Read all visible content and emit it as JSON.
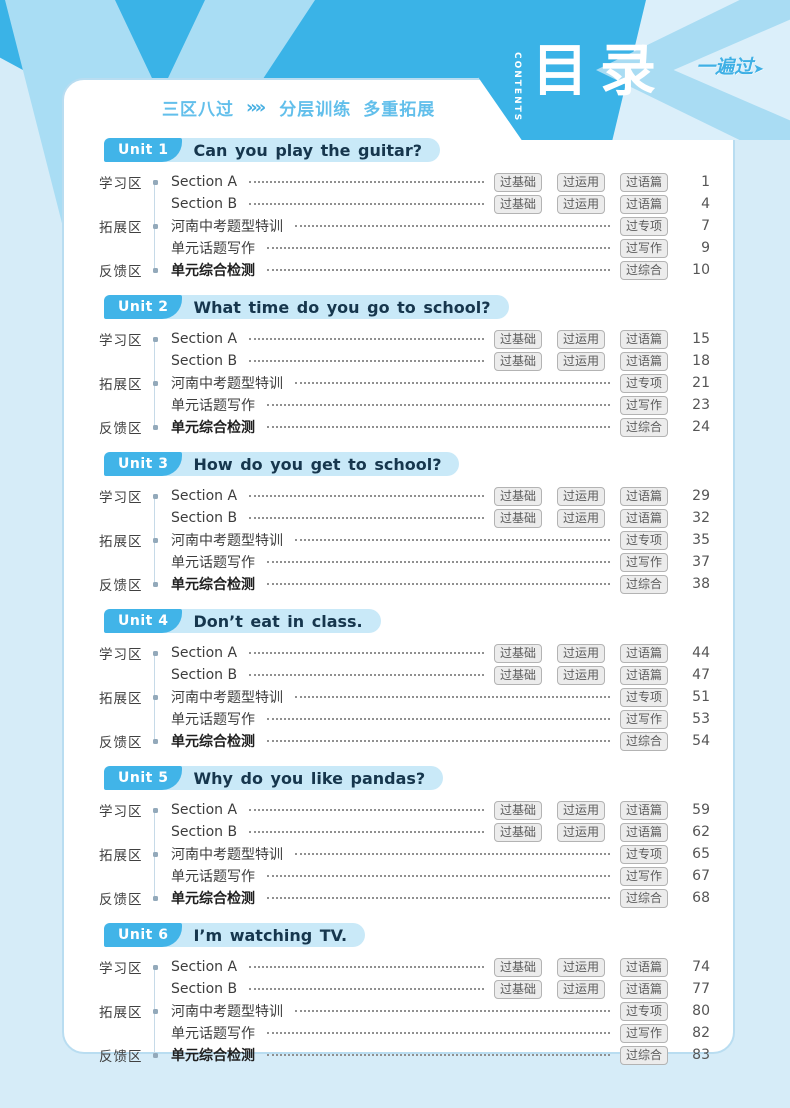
{
  "header": {
    "contents_label": "CONTENTS",
    "title": "目录",
    "brand": "一遍过",
    "tagline": {
      "lead": "三区八过",
      "mid": "分层训练",
      "tail": "多重拓展"
    }
  },
  "icons": {
    "double_chevron": "»»",
    "logo_arrow": "➤"
  },
  "colors": {
    "band_blue": "#3ab3e7",
    "badge_blue": "#41b4e8",
    "bubble_light_blue": "#c9e9f8",
    "page_background": "#d6ecf8",
    "tag_background": "#ececec",
    "title_navy": "#16364d",
    "tagline_blue": "#62bfeb"
  },
  "units": [
    {
      "badge": "Unit 1",
      "title": "Can you play the guitar?",
      "rows": [
        {
          "zone": "学习区",
          "item": "Section A",
          "bold": false,
          "tags": [
            "过基础",
            "过运用",
            "过语篇"
          ],
          "page": "1"
        },
        {
          "zone": "",
          "item": "Section B",
          "bold": false,
          "tags": [
            "过基础",
            "过运用",
            "过语篇"
          ],
          "page": "4"
        },
        {
          "zone": "拓展区",
          "item": "河南中考题型特训",
          "bold": false,
          "tags": [
            "过专项"
          ],
          "page": "7"
        },
        {
          "zone": "",
          "item": "单元话题写作",
          "bold": false,
          "tags": [
            "过写作"
          ],
          "page": "9"
        },
        {
          "zone": "反馈区",
          "item": "单元综合检测",
          "bold": true,
          "tags": [
            "过综合"
          ],
          "page": "10"
        }
      ]
    },
    {
      "badge": "Unit 2",
      "title": "What time do you go to school?",
      "rows": [
        {
          "zone": "学习区",
          "item": "Section A",
          "bold": false,
          "tags": [
            "过基础",
            "过运用",
            "过语篇"
          ],
          "page": "15"
        },
        {
          "zone": "",
          "item": "Section B",
          "bold": false,
          "tags": [
            "过基础",
            "过运用",
            "过语篇"
          ],
          "page": "18"
        },
        {
          "zone": "拓展区",
          "item": "河南中考题型特训",
          "bold": false,
          "tags": [
            "过专项"
          ],
          "page": "21"
        },
        {
          "zone": "",
          "item": "单元话题写作",
          "bold": false,
          "tags": [
            "过写作"
          ],
          "page": "23"
        },
        {
          "zone": "反馈区",
          "item": "单元综合检测",
          "bold": true,
          "tags": [
            "过综合"
          ],
          "page": "24"
        }
      ]
    },
    {
      "badge": "Unit 3",
      "title": "How do you get to school?",
      "rows": [
        {
          "zone": "学习区",
          "item": "Section A",
          "bold": false,
          "tags": [
            "过基础",
            "过运用",
            "过语篇"
          ],
          "page": "29"
        },
        {
          "zone": "",
          "item": "Section B",
          "bold": false,
          "tags": [
            "过基础",
            "过运用",
            "过语篇"
          ],
          "page": "32"
        },
        {
          "zone": "拓展区",
          "item": "河南中考题型特训",
          "bold": false,
          "tags": [
            "过专项"
          ],
          "page": "35"
        },
        {
          "zone": "",
          "item": "单元话题写作",
          "bold": false,
          "tags": [
            "过写作"
          ],
          "page": "37"
        },
        {
          "zone": "反馈区",
          "item": "单元综合检测",
          "bold": true,
          "tags": [
            "过综合"
          ],
          "page": "38"
        }
      ]
    },
    {
      "badge": "Unit 4",
      "title": "Don’t eat in class.",
      "rows": [
        {
          "zone": "学习区",
          "item": "Section A",
          "bold": false,
          "tags": [
            "过基础",
            "过运用",
            "过语篇"
          ],
          "page": "44"
        },
        {
          "zone": "",
          "item": "Section B",
          "bold": false,
          "tags": [
            "过基础",
            "过运用",
            "过语篇"
          ],
          "page": "47"
        },
        {
          "zone": "拓展区",
          "item": "河南中考题型特训",
          "bold": false,
          "tags": [
            "过专项"
          ],
          "page": "51"
        },
        {
          "zone": "",
          "item": "单元话题写作",
          "bold": false,
          "tags": [
            "过写作"
          ],
          "page": "53"
        },
        {
          "zone": "反馈区",
          "item": "单元综合检测",
          "bold": true,
          "tags": [
            "过综合"
          ],
          "page": "54"
        }
      ]
    },
    {
      "badge": "Unit 5",
      "title": "Why do you like pandas?",
      "rows": [
        {
          "zone": "学习区",
          "item": "Section A",
          "bold": false,
          "tags": [
            "过基础",
            "过运用",
            "过语篇"
          ],
          "page": "59"
        },
        {
          "zone": "",
          "item": "Section B",
          "bold": false,
          "tags": [
            "过基础",
            "过运用",
            "过语篇"
          ],
          "page": "62"
        },
        {
          "zone": "拓展区",
          "item": "河南中考题型特训",
          "bold": false,
          "tags": [
            "过专项"
          ],
          "page": "65"
        },
        {
          "zone": "",
          "item": "单元话题写作",
          "bold": false,
          "tags": [
            "过写作"
          ],
          "page": "67"
        },
        {
          "zone": "反馈区",
          "item": "单元综合检测",
          "bold": true,
          "tags": [
            "过综合"
          ],
          "page": "68"
        }
      ]
    },
    {
      "badge": "Unit 6",
      "title": "I’m watching TV.",
      "rows": [
        {
          "zone": "学习区",
          "item": "Section A",
          "bold": false,
          "tags": [
            "过基础",
            "过运用",
            "过语篇"
          ],
          "page": "74"
        },
        {
          "zone": "",
          "item": "Section B",
          "bold": false,
          "tags": [
            "过基础",
            "过运用",
            "过语篇"
          ],
          "page": "77"
        },
        {
          "zone": "拓展区",
          "item": "河南中考题型特训",
          "bold": false,
          "tags": [
            "过专项"
          ],
          "page": "80"
        },
        {
          "zone": "",
          "item": "单元话题写作",
          "bold": false,
          "tags": [
            "过写作"
          ],
          "page": "82"
        },
        {
          "zone": "反馈区",
          "item": "单元综合检测",
          "bold": true,
          "tags": [
            "过综合"
          ],
          "page": "83"
        }
      ]
    }
  ]
}
